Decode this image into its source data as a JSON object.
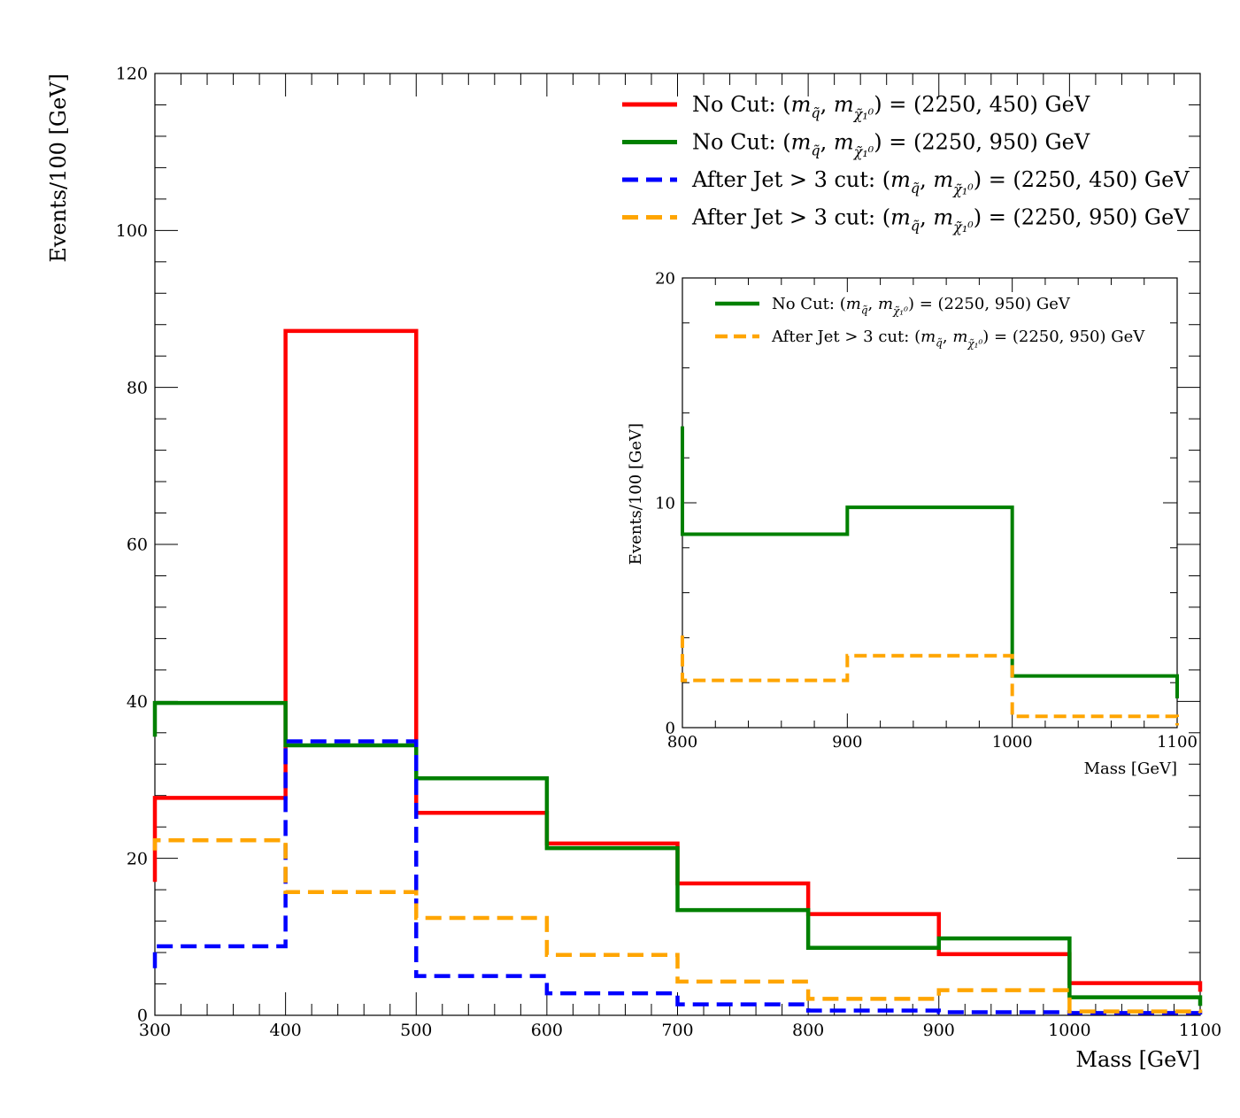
{
  "chart_data": [
    {
      "type": "line",
      "subtype": "step-histogram",
      "title": "",
      "xlabel": "Mass [GeV]",
      "ylabel": "Events/100 [GeV]",
      "xlim": [
        300,
        1100
      ],
      "ylim": [
        0,
        120
      ],
      "x_ticks": [
        300,
        400,
        500,
        600,
        700,
        800,
        900,
        1000,
        1100
      ],
      "y_ticks": [
        0,
        20,
        40,
        60,
        80,
        100,
        120
      ],
      "legend_position": "top-right",
      "bin_edges": [
        300,
        400,
        500,
        600,
        700,
        800,
        900,
        1000,
        1100
      ],
      "series": [
        {
          "name": "No Cut: (m_q̃, m_χ̃₁⁰) = (2250, 450) GeV",
          "legend_prefix": "No Cut: ",
          "legend_suffix": " = (2250, 450) GeV",
          "color": "#ff0000",
          "dashed": false,
          "start": 17,
          "end": 3,
          "values": [
            27.7,
            87.2,
            25.8,
            21.9,
            16.8,
            12.9,
            7.8,
            4.1
          ]
        },
        {
          "name": "No Cut: (m_q̃, m_χ̃₁⁰) = (2250, 950) GeV",
          "legend_prefix": "No Cut: ",
          "legend_suffix": " = (2250, 950) GeV",
          "color": "#008000",
          "dashed": false,
          "start": 35.5,
          "end": 1.2,
          "values": [
            39.8,
            34.4,
            30.2,
            21.3,
            13.4,
            8.6,
            9.8,
            2.3
          ]
        },
        {
          "name": "After Jet > 3 cut: (m_q̃, m_χ̃₁⁰) = (2250, 450) GeV",
          "legend_prefix": "After Jet > 3 cut: ",
          "legend_suffix": " = (2250, 450) GeV",
          "color": "#0000ff",
          "dashed": true,
          "start": 6,
          "end": 0.1,
          "values": [
            8.8,
            34.9,
            5.0,
            2.8,
            1.4,
            0.6,
            0.4,
            0.3
          ]
        },
        {
          "name": "After Jet > 3 cut: (m_q̃, m_χ̃₁⁰) = (2250, 950) GeV",
          "legend_prefix": "After Jet > 3 cut: ",
          "legend_suffix": " = (2250, 950) GeV",
          "color": "#ffa500",
          "dashed": true,
          "start": 21,
          "end": 0.3,
          "values": [
            22.3,
            15.7,
            12.4,
            7.7,
            4.3,
            2.1,
            3.2,
            0.5
          ]
        }
      ]
    },
    {
      "type": "line",
      "subtype": "step-histogram-inset",
      "title": "",
      "xlabel": "Mass [GeV]",
      "ylabel": "Events/100 [GeV]",
      "xlim": [
        800,
        1100
      ],
      "ylim": [
        0,
        20
      ],
      "x_ticks": [
        800,
        900,
        1000,
        1100
      ],
      "y_ticks": [
        0,
        10,
        20
      ],
      "legend_position": "top",
      "bin_edges": [
        800,
        900,
        1000,
        1100
      ],
      "series": [
        {
          "name": "No Cut: (m_q̃, m_χ̃₁⁰) = (2250, 950) GeV",
          "legend_prefix": "No Cut: ",
          "legend_suffix": " = (2250, 950) GeV",
          "color": "#008000",
          "dashed": false,
          "start": 13.4,
          "end": 1.3,
          "values": [
            8.6,
            9.8,
            2.3
          ]
        },
        {
          "name": "After Jet > 3 cut: (m_q̃, m_χ̃₁⁰) = (2250, 950) GeV",
          "legend_prefix": "After Jet > 3 cut: ",
          "legend_suffix": " = (2250, 950) GeV",
          "color": "#ffa500",
          "dashed": true,
          "start": 4.1,
          "end": 0.1,
          "values": [
            2.1,
            3.2,
            0.5
          ]
        }
      ]
    }
  ]
}
